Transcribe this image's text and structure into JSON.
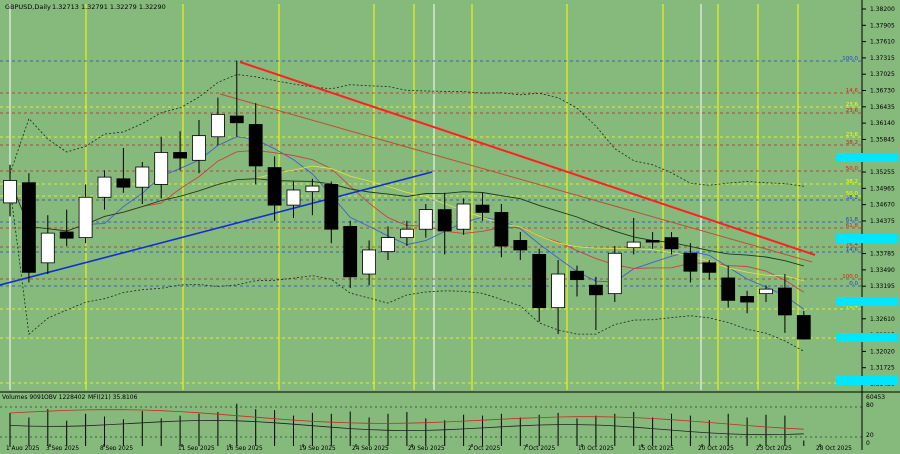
{
  "header": {
    "symbol": "GBPUSD,Daily",
    "ohlc": "1.32713 1.32791 1.32279 1.32290"
  },
  "indicator_header": {
    "volumes": "Volumes 9091",
    "obv": "OBV 1228402",
    "mfi": "MFI(21) 35.8106"
  },
  "indicator_axis": {
    "max": "60453",
    "levels": [
      "80",
      "20",
      "0"
    ]
  },
  "price_axis": {
    "ticks": [
      "1.38200",
      "1.37905",
      "1.37610",
      "1.37315",
      "1.37025",
      "1.36730",
      "1.36435",
      "1.36140",
      "1.35845",
      "1.35550",
      "1.35255",
      "1.34965",
      "1.34670",
      "1.34375",
      "1.34080",
      "1.33785",
      "1.33490",
      "1.33195",
      "1.32900",
      "1.32610",
      "1.32315",
      "1.32020",
      "1.31725",
      "1.31430"
    ],
    "highlight_color": "#00e6ff"
  },
  "fib_levels": [
    {
      "label": "100.0",
      "color": "#2244cc"
    },
    {
      "label": "14.6",
      "color": "#cc2222"
    },
    {
      "label": "23.6",
      "color": "#ffff00"
    },
    {
      "label": "23.6",
      "color": "#cc2222"
    },
    {
      "label": "23.6",
      "color": "#ffff00"
    },
    {
      "label": "38.2",
      "color": "#cc2222"
    },
    {
      "label": "50.0",
      "color": "#cc2222"
    },
    {
      "label": "38.2",
      "color": "#ffff00"
    },
    {
      "label": "38.2",
      "color": "#2244cc"
    },
    {
      "label": "50.0",
      "color": "#ffff00"
    },
    {
      "label": "61.8",
      "color": "#2244cc"
    },
    {
      "label": "61.8",
      "color": "#cc2222"
    },
    {
      "label": "14.6",
      "color": "#2244cc"
    },
    {
      "label": "76.4",
      "color": "#cc2222"
    },
    {
      "label": "100.0",
      "color": "#cc2222"
    },
    {
      "label": "0.0",
      "color": "#2244cc"
    },
    {
      "label": "76.4",
      "color": "#ffff00"
    },
    {
      "label": "88.6",
      "color": "#ffff00"
    },
    {
      "label": "100.0",
      "color": "#ffff00"
    }
  ],
  "time_axis": {
    "labels": [
      "1 Aug 2025",
      "3 Sep 2025",
      "8 Sep 2025",
      "11 Sep 2025",
      "16 Sep 2025",
      "19 Sep 2025",
      "24 Sep 2025",
      "29 Sep 2025",
      "2 Oct 2025",
      "7 Oct 2025",
      "10 Oct 2025",
      "15 Oct 2025",
      "20 Oct 2025",
      "23 Oct 2025",
      "28 Oct 2025"
    ]
  },
  "colors": {
    "background": "#86b97c",
    "bull_candle": "#ffffff",
    "bear_candle": "#000000",
    "trend_red": "#ff2020",
    "trend_blue": "#1030d0",
    "vertical_yellow": "#ffff00",
    "axis_text": "#000000"
  },
  "chart_data": {
    "type": "candlestick",
    "title": "GBPUSD,Daily",
    "y_unit": "price",
    "ylim": [
      1.3138,
      1.3827
    ],
    "candles": [
      {
        "o": 1.3472,
        "h": 1.354,
        "l": 1.3448,
        "c": 1.3512
      },
      {
        "o": 1.3508,
        "h": 1.3525,
        "l": 1.333,
        "c": 1.3348
      },
      {
        "o": 1.3365,
        "h": 1.345,
        "l": 1.3345,
        "c": 1.3418
      },
      {
        "o": 1.342,
        "h": 1.346,
        "l": 1.3395,
        "c": 1.3409
      },
      {
        "o": 1.341,
        "h": 1.3505,
        "l": 1.34,
        "c": 1.3482
      },
      {
        "o": 1.3482,
        "h": 1.353,
        "l": 1.346,
        "c": 1.3518
      },
      {
        "o": 1.3515,
        "h": 1.357,
        "l": 1.349,
        "c": 1.35
      },
      {
        "o": 1.35,
        "h": 1.3545,
        "l": 1.347,
        "c": 1.3536
      },
      {
        "o": 1.3505,
        "h": 1.359,
        "l": 1.348,
        "c": 1.3562
      },
      {
        "o": 1.3562,
        "h": 1.36,
        "l": 1.353,
        "c": 1.3552
      },
      {
        "o": 1.3548,
        "h": 1.362,
        "l": 1.3525,
        "c": 1.3592
      },
      {
        "o": 1.359,
        "h": 1.366,
        "l": 1.3575,
        "c": 1.363
      },
      {
        "o": 1.3627,
        "h": 1.3726,
        "l": 1.359,
        "c": 1.3615
      },
      {
        "o": 1.3612,
        "h": 1.365,
        "l": 1.3505,
        "c": 1.3538
      },
      {
        "o": 1.3535,
        "h": 1.3555,
        "l": 1.344,
        "c": 1.3468
      },
      {
        "o": 1.3468,
        "h": 1.351,
        "l": 1.3445,
        "c": 1.3495
      },
      {
        "o": 1.3492,
        "h": 1.3515,
        "l": 1.345,
        "c": 1.3502
      },
      {
        "o": 1.3505,
        "h": 1.351,
        "l": 1.34,
        "c": 1.3425
      },
      {
        "o": 1.343,
        "h": 1.344,
        "l": 1.332,
        "c": 1.334
      },
      {
        "o": 1.3345,
        "h": 1.3405,
        "l": 1.3325,
        "c": 1.3388
      },
      {
        "o": 1.3385,
        "h": 1.343,
        "l": 1.337,
        "c": 1.341
      },
      {
        "o": 1.341,
        "h": 1.344,
        "l": 1.3395,
        "c": 1.3425
      },
      {
        "o": 1.3425,
        "h": 1.347,
        "l": 1.341,
        "c": 1.346
      },
      {
        "o": 1.346,
        "h": 1.349,
        "l": 1.338,
        "c": 1.3422
      },
      {
        "o": 1.3425,
        "h": 1.348,
        "l": 1.3415,
        "c": 1.347
      },
      {
        "o": 1.3468,
        "h": 1.349,
        "l": 1.344,
        "c": 1.3455
      },
      {
        "o": 1.3455,
        "h": 1.347,
        "l": 1.3375,
        "c": 1.3395
      },
      {
        "o": 1.3405,
        "h": 1.342,
        "l": 1.337,
        "c": 1.3388
      },
      {
        "o": 1.338,
        "h": 1.339,
        "l": 1.326,
        "c": 1.3285
      },
      {
        "o": 1.3285,
        "h": 1.337,
        "l": 1.3238,
        "c": 1.3345
      },
      {
        "o": 1.335,
        "h": 1.336,
        "l": 1.3305,
        "c": 1.3335
      },
      {
        "o": 1.3325,
        "h": 1.334,
        "l": 1.3245,
        "c": 1.3308
      },
      {
        "o": 1.331,
        "h": 1.3395,
        "l": 1.3295,
        "c": 1.3382
      },
      {
        "o": 1.3392,
        "h": 1.3445,
        "l": 1.338,
        "c": 1.3402
      },
      {
        "o": 1.3405,
        "h": 1.342,
        "l": 1.339,
        "c": 1.3402
      },
      {
        "o": 1.341,
        "h": 1.342,
        "l": 1.338,
        "c": 1.339
      },
      {
        "o": 1.3382,
        "h": 1.34,
        "l": 1.333,
        "c": 1.335
      },
      {
        "o": 1.3365,
        "h": 1.337,
        "l": 1.3335,
        "c": 1.3348
      },
      {
        "o": 1.3338,
        "h": 1.336,
        "l": 1.3285,
        "c": 1.3298
      },
      {
        "o": 1.3305,
        "h": 1.3315,
        "l": 1.3275,
        "c": 1.3295
      },
      {
        "o": 1.331,
        "h": 1.3325,
        "l": 1.3295,
        "c": 1.3318
      },
      {
        "o": 1.332,
        "h": 1.3345,
        "l": 1.324,
        "c": 1.3272
      },
      {
        "o": 1.3271,
        "h": 1.3279,
        "l": 1.3228,
        "c": 1.3229
      }
    ],
    "volumes": [
      0.72,
      0.62,
      0.8,
      0.55,
      0.7,
      0.64,
      0.58,
      0.76,
      0.6,
      0.66,
      0.7,
      0.74,
      0.92,
      0.8,
      0.78,
      0.66,
      0.72,
      0.7,
      0.75,
      0.62,
      0.7,
      0.74,
      0.6,
      0.56,
      0.68,
      0.66,
      0.7,
      0.62,
      0.68,
      0.72,
      0.6,
      0.66,
      0.7,
      0.74,
      0.62,
      0.7,
      0.66,
      0.56,
      0.7,
      0.62,
      0.68,
      0.66,
      0.12
    ]
  }
}
